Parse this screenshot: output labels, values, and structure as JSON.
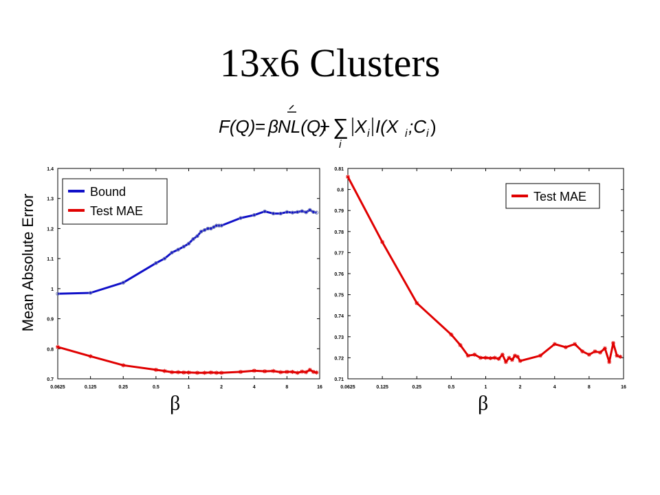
{
  "slide": {
    "title": "13x6 Clusters",
    "formula": {
      "F": "F(Q)",
      "eq": "=",
      "beta": "β",
      "term1": "NL(Q)",
      "plus": "+",
      "sum": "∑",
      "sum_index": "i",
      "Xi_abs": "X",
      "sub_i": "i",
      "info": "I(X",
      "semi": ";C",
      "close": ")"
    }
  },
  "chart_data": [
    {
      "type": "line",
      "title": "",
      "xscale": "log2",
      "xlabel": "β",
      "ylabel": "Mean Absolute Error",
      "xlim": [
        0.0625,
        16
      ],
      "ylim": [
        0.7,
        1.4
      ],
      "xticks": [
        0.0625,
        0.125,
        0.25,
        0.5,
        1,
        2,
        4,
        8,
        16
      ],
      "xtick_labels": [
        "0.0625",
        "0.125",
        "0.25",
        "0.5",
        "1",
        "2",
        "4",
        "8",
        "16"
      ],
      "yticks": [
        0.7,
        0.8,
        0.9,
        1,
        1.1,
        1.2,
        1.3,
        1.4
      ],
      "ytick_labels": [
        "0.7",
        "0.8",
        "0.9",
        "1",
        "1.1",
        "1.2",
        "1.3",
        "1.4"
      ],
      "legend": "top-left",
      "series": [
        {
          "name": "Bound",
          "color": "#1010c8",
          "marker": "circle",
          "x": [
            0.0625,
            0.125,
            0.25,
            0.5,
            0.6,
            0.7,
            0.8,
            0.9,
            1.0,
            1.1,
            1.2,
            1.3,
            1.4,
            1.5,
            1.6,
            1.7,
            1.8,
            1.9,
            2.0,
            3.0,
            4.0,
            5.0,
            6.0,
            7.0,
            8.0,
            9.0,
            10.0,
            11.0,
            12.0,
            13.0,
            14.0,
            15.0
          ],
          "y": [
            0.983,
            0.986,
            1.02,
            1.085,
            1.1,
            1.12,
            1.13,
            1.14,
            1.15,
            1.165,
            1.175,
            1.19,
            1.195,
            1.2,
            1.2,
            1.205,
            1.21,
            1.21,
            1.21,
            1.235,
            1.245,
            1.257,
            1.25,
            1.25,
            1.255,
            1.253,
            1.255,
            1.258,
            1.254,
            1.262,
            1.255,
            1.253
          ]
        },
        {
          "name": "Test MAE",
          "color": "#e00000",
          "marker": "star",
          "x": [
            0.0625,
            0.125,
            0.25,
            0.5,
            0.6,
            0.7,
            0.8,
            0.9,
            1.0,
            1.2,
            1.4,
            1.6,
            1.8,
            2.0,
            3.0,
            4.0,
            5.0,
            6.0,
            7.0,
            8.0,
            9.0,
            10.0,
            11.0,
            12.0,
            13.0,
            14.0,
            15.0
          ],
          "y": [
            0.806,
            0.775,
            0.745,
            0.73,
            0.726,
            0.722,
            0.722,
            0.721,
            0.721,
            0.72,
            0.72,
            0.721,
            0.72,
            0.72,
            0.723,
            0.727,
            0.725,
            0.726,
            0.722,
            0.723,
            0.723,
            0.72,
            0.724,
            0.722,
            0.73,
            0.723,
            0.721
          ]
        }
      ]
    },
    {
      "type": "line",
      "title": "",
      "xscale": "log2",
      "xlabel": "β",
      "ylabel": "",
      "xlim": [
        0.0625,
        16
      ],
      "ylim": [
        0.71,
        0.81
      ],
      "xticks": [
        0.0625,
        0.125,
        0.25,
        0.5,
        1,
        2,
        4,
        8,
        16
      ],
      "xtick_labels": [
        "0.0625",
        "0.125",
        "0.25",
        "0.5",
        "1",
        "2",
        "4",
        "8",
        "16"
      ],
      "yticks": [
        0.71,
        0.72,
        0.73,
        0.74,
        0.75,
        0.76,
        0.77,
        0.78,
        0.79,
        0.8,
        0.81
      ],
      "ytick_labels": [
        "0.71",
        "0.72",
        "0.73",
        "0.74",
        "0.75",
        "0.76",
        "0.77",
        "0.78",
        "0.79",
        "0.8",
        "0.81"
      ],
      "legend": "top-right",
      "series": [
        {
          "name": "Test MAE",
          "color": "#e00000",
          "marker": "star",
          "x": [
            0.0625,
            0.125,
            0.25,
            0.5,
            0.6,
            0.7,
            0.8,
            0.9,
            1.0,
            1.1,
            1.2,
            1.3,
            1.4,
            1.5,
            1.6,
            1.7,
            1.8,
            1.9,
            2.0,
            3.0,
            4.0,
            5.0,
            6.0,
            7.0,
            8.0,
            9.0,
            10.0,
            11.0,
            12.0,
            13.0,
            14.0,
            15.0
          ],
          "y": [
            0.806,
            0.775,
            0.746,
            0.731,
            0.726,
            0.721,
            0.7215,
            0.72,
            0.72,
            0.7198,
            0.72,
            0.7195,
            0.7215,
            0.718,
            0.72,
            0.719,
            0.721,
            0.7205,
            0.7185,
            0.721,
            0.7265,
            0.725,
            0.7265,
            0.723,
            0.7215,
            0.723,
            0.7225,
            0.7245,
            0.718,
            0.727,
            0.721,
            0.7205
          ]
        }
      ]
    }
  ]
}
